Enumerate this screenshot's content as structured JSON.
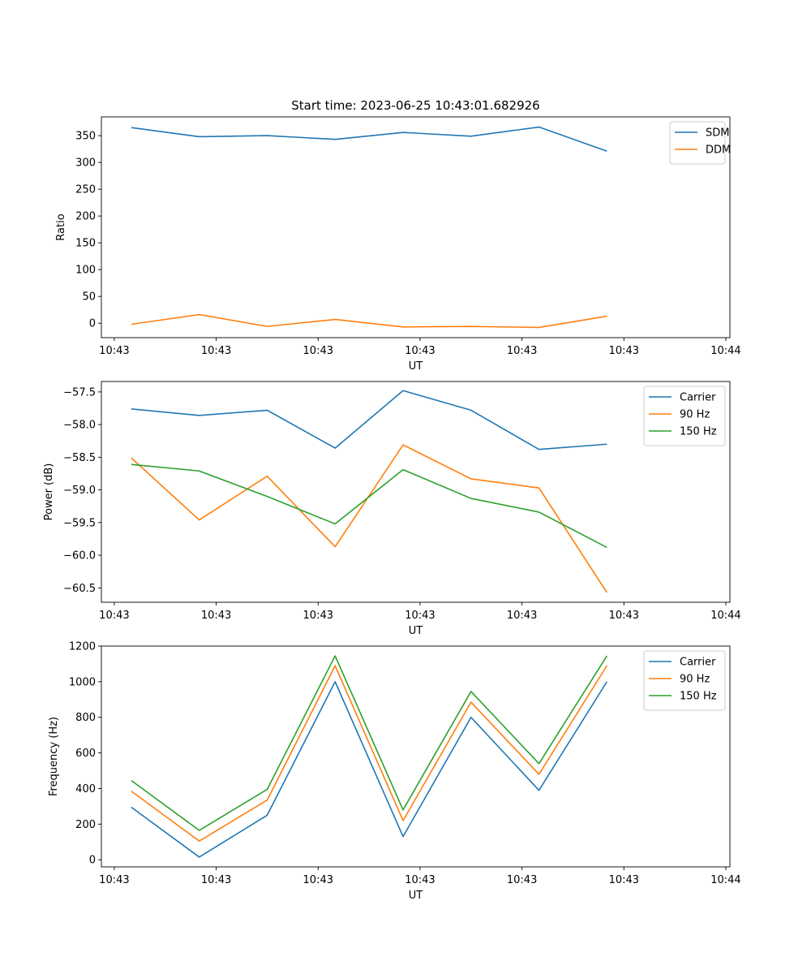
{
  "colors": {
    "blue": "#1f77b4",
    "orange": "#ff7f0e",
    "green": "#2ca02c"
  },
  "chart_data": [
    {
      "type": "line",
      "title": "Start time: 2023-06-25 10:43:01.682926",
      "xlabel": "UT",
      "ylabel": "Ratio",
      "grid": false,
      "legend": "top-right",
      "x": [
        1,
        2,
        3,
        4,
        5,
        6,
        7,
        8
      ],
      "xlim": [
        0.56,
        9.81
      ],
      "x_ticks": [
        0.75,
        2.25,
        3.75,
        5.25,
        6.75,
        8.25,
        9.75
      ],
      "x_tick_labels": [
        "10:43",
        "10:43",
        "10:43",
        "10:43",
        "10:43",
        "10:43",
        "10:44"
      ],
      "ylim": [
        -27,
        385
      ],
      "y_ticks": [
        0,
        50,
        100,
        150,
        200,
        250,
        300,
        350
      ],
      "y_tick_labels": [
        "0",
        "50",
        "100",
        "150",
        "200",
        "250",
        "300",
        "350"
      ],
      "series": [
        {
          "name": "SDM",
          "color": "#1f77b4",
          "values": [
            365,
            348,
            350,
            343,
            356,
            349,
            366,
            321
          ]
        },
        {
          "name": "DDM",
          "color": "#ff7f0e",
          "values": [
            -2,
            16,
            -6,
            7,
            -7,
            -6,
            -8,
            13
          ]
        }
      ]
    },
    {
      "type": "line",
      "title": "",
      "xlabel": "UT",
      "ylabel": "Power (dB)",
      "grid": false,
      "legend": "top-right",
      "x": [
        1,
        2,
        3,
        4,
        5,
        6,
        7,
        8
      ],
      "xlim": [
        0.56,
        9.81
      ],
      "x_ticks": [
        0.75,
        2.25,
        3.75,
        5.25,
        6.75,
        8.25,
        9.75
      ],
      "x_tick_labels": [
        "10:43",
        "10:43",
        "10:43",
        "10:43",
        "10:43",
        "10:43",
        "10:44"
      ],
      "ylim": [
        -60.72,
        -57.34
      ],
      "y_ticks": [
        -60.5,
        -60.0,
        -59.5,
        -59.0,
        -58.5,
        -58.0,
        -57.5
      ],
      "y_tick_labels": [
        "−60.5",
        "−60.0",
        "−59.5",
        "−59.0",
        "−58.5",
        "−58.0",
        "−57.5"
      ],
      "series": [
        {
          "name": "Carrier",
          "color": "#1f77b4",
          "values": [
            -57.76,
            -57.86,
            -57.78,
            -58.36,
            -57.48,
            -57.78,
            -58.38,
            -58.3
          ]
        },
        {
          "name": "90 Hz",
          "color": "#ff7f0e",
          "values": [
            -58.51,
            -59.46,
            -58.79,
            -59.87,
            -58.31,
            -58.83,
            -58.97,
            -60.57
          ]
        },
        {
          "name": "150 Hz",
          "color": "#2ca02c",
          "values": [
            -58.61,
            -58.71,
            -59.1,
            -59.52,
            -58.69,
            -59.13,
            -59.34,
            -59.88
          ]
        }
      ]
    },
    {
      "type": "line",
      "title": "",
      "xlabel": "UT",
      "ylabel": "Frequency (Hz)",
      "grid": false,
      "legend": "top-right",
      "x": [
        1,
        2,
        3,
        4,
        5,
        6,
        7,
        8
      ],
      "xlim": [
        0.56,
        9.81
      ],
      "x_ticks": [
        0.75,
        2.25,
        3.75,
        5.25,
        6.75,
        8.25,
        9.75
      ],
      "x_tick_labels": [
        "10:43",
        "10:43",
        "10:43",
        "10:43",
        "10:43",
        "10:43",
        "10:44"
      ],
      "ylim": [
        -40,
        1200
      ],
      "y_ticks": [
        0,
        200,
        400,
        600,
        800,
        1000,
        1200
      ],
      "y_tick_labels": [
        "0",
        "200",
        "400",
        "600",
        "800",
        "1000",
        "1200"
      ],
      "series": [
        {
          "name": "Carrier",
          "color": "#1f77b4",
          "values": [
            295,
            15,
            250,
            1000,
            130,
            800,
            390,
            1000
          ]
        },
        {
          "name": "90 Hz",
          "color": "#ff7f0e",
          "values": [
            385,
            105,
            335,
            1090,
            220,
            885,
            480,
            1090
          ]
        },
        {
          "name": "150 Hz",
          "color": "#2ca02c",
          "values": [
            445,
            165,
            395,
            1145,
            280,
            945,
            540,
            1145
          ]
        }
      ]
    }
  ]
}
